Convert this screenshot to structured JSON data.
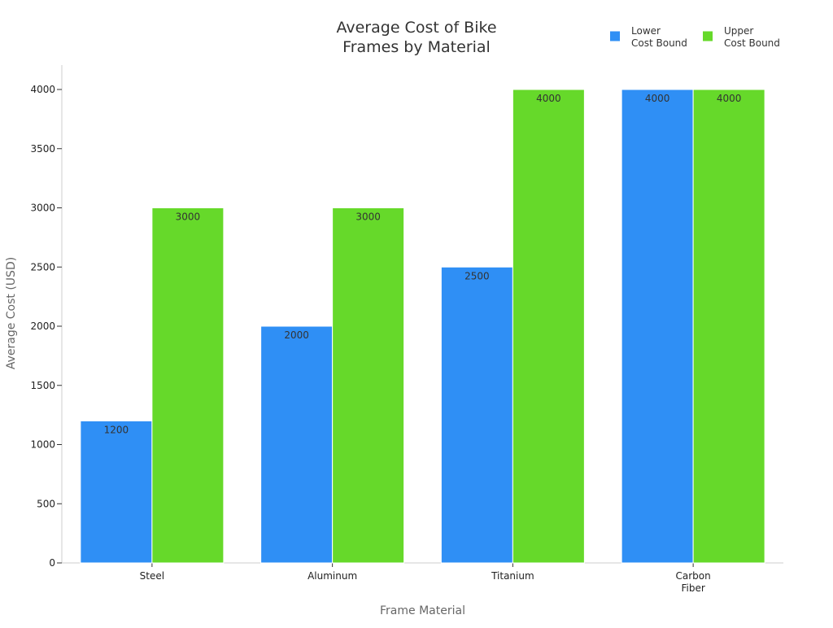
{
  "chart_data": {
    "type": "bar",
    "title": [
      "Average Cost of Bike",
      "Frames by Material"
    ],
    "xlabel": "Frame Material",
    "ylabel": "Average Cost (USD)",
    "categories": [
      [
        "Steel"
      ],
      [
        "Aluminum"
      ],
      [
        "Titanium"
      ],
      [
        "Carbon",
        "Fiber"
      ]
    ],
    "series": [
      {
        "name": [
          "Lower",
          "Cost Bound"
        ],
        "values": [
          1200,
          2000,
          2500,
          4000
        ],
        "color": "#2f8ff5"
      },
      {
        "name": [
          "Upper",
          "Cost Bound"
        ],
        "values": [
          3000,
          3000,
          4000,
          4000
        ],
        "color": "#66d92a"
      }
    ],
    "ylim": [
      0,
      4000
    ],
    "yticks": [
      0,
      500,
      1000,
      1500,
      2000,
      2500,
      3000,
      3500,
      4000
    ],
    "grid": false,
    "legend_position": "top-right",
    "data_labels": true
  }
}
